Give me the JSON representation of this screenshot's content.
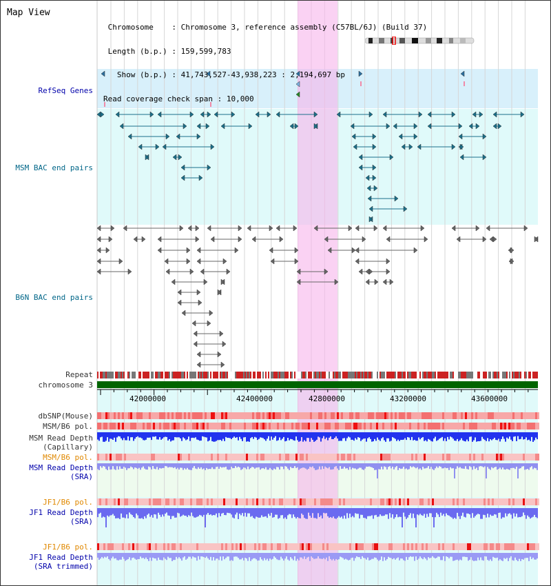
{
  "app": {
    "title": "Map View"
  },
  "header": {
    "chromosome_key": "Chromosome",
    "chromosome_val": "Chromosome 3, reference assembly (C57BL/6J) (Build 37)",
    "length_key": "Length (b.p.)",
    "length_val": "159,599,783",
    "show_key": "Show (b.p.)",
    "show_val": "41,743,527-43,938,223 : 2,194,697 bp",
    "coverage_key": "Read coverage check span",
    "coverage_val": "10,000"
  },
  "tracks": {
    "refseq": "RefSeq Genes",
    "msm_bac": "MSM BAC end pairs",
    "b6n_bac": "B6N BAC end pairs",
    "repeat": "Repeat",
    "chromosome": "chromosome 3",
    "dbsnp": "dbSNP(Mouse)",
    "msm_b6_pol": "MSM/B6 pol.",
    "msm_read_depth_cap_1": "MSM Read Depth",
    "msm_read_depth_cap_2": "(Capillary)",
    "msm_b6_pol_2": "MSM/B6 pol.",
    "msm_read_depth_sra_1": "MSM Read Depth",
    "msm_read_depth_sra_2": "(SRA)",
    "jf1_b6_pol": "JF1/B6 pol.",
    "jf1_read_depth_1": "JF1 Read Depth",
    "jf1_read_depth_2": "(SRA)",
    "jf1_b6_pol_2": "JF1/B6 pol.",
    "jf1_read_depth_tr_1": "JF1 Read Depth",
    "jf1_read_depth_tr_2": "(SRA trimmed)"
  },
  "axis": {
    "ticks": [
      "42000000",
      "42400000",
      "42800000",
      "43200000",
      "43600000"
    ]
  },
  "colors": {
    "highlight": "#f7c8ee",
    "refseq_bg": "#d8f0fb",
    "msm_bg": "#e0fafa",
    "chromosome_bar": "#006400",
    "depth_blue": "#2233ee",
    "depth_light": "#8888ff"
  }
}
